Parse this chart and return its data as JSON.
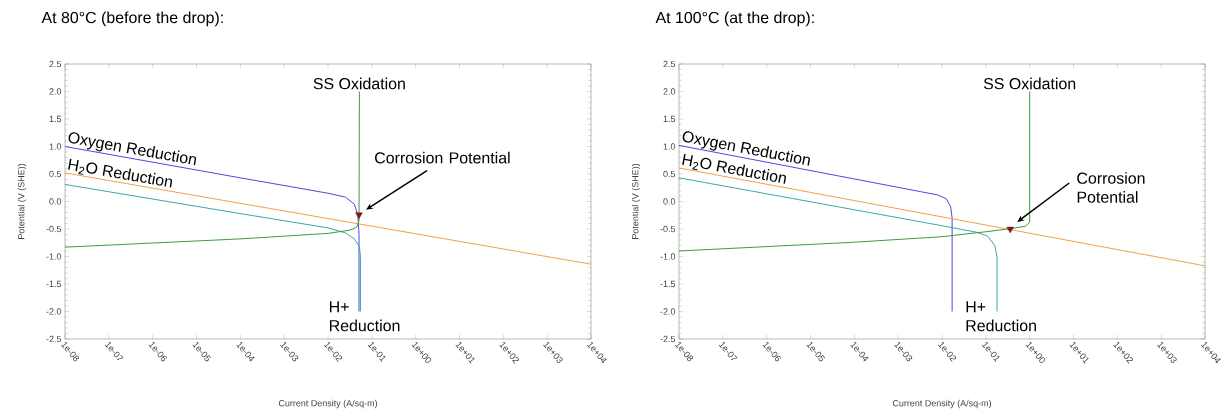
{
  "chart_data": [
    {
      "type": "line",
      "title": "At 80°C (before the drop):",
      "xlabel": "Current Density (A/sq-m)",
      "ylabel": "Potential (V (SHE))",
      "log": "x",
      "xlim": [
        1e-08,
        10000.0
      ],
      "ylim": [
        -2.5,
        2.5
      ],
      "xticks": [
        {
          "value": 1e-08,
          "label": "1e-08"
        },
        {
          "value": 1e-07,
          "label": "1e-07"
        },
        {
          "value": 1e-06,
          "label": "1e-06"
        },
        {
          "value": 1e-05,
          "label": "1e-05"
        },
        {
          "value": 0.0001,
          "label": "1e-04"
        },
        {
          "value": 0.001,
          "label": "1e-03"
        },
        {
          "value": 0.01,
          "label": "1e-02"
        },
        {
          "value": 0.1,
          "label": "1e-01"
        },
        {
          "value": 1,
          "label": "1e+00"
        },
        {
          "value": 10,
          "label": "1e+01"
        },
        {
          "value": 100,
          "label": "1e+02"
        },
        {
          "value": 1000,
          "label": "1e+03"
        },
        {
          "value": 10000,
          "label": "1e+04"
        }
      ],
      "yticks": [
        {
          "value": 2.5,
          "label": "2.5"
        },
        {
          "value": 2,
          "label": "2.0"
        },
        {
          "value": 1.5,
          "label": "1.5"
        },
        {
          "value": 1,
          "label": "1.0"
        },
        {
          "value": 0.5,
          "label": "0.5"
        },
        {
          "value": 0,
          "label": "0.0"
        },
        {
          "value": -0.5,
          "label": "-0.5"
        },
        {
          "value": -1,
          "label": "-1.0"
        },
        {
          "value": -1.5,
          "label": "-1.5"
        },
        {
          "value": -2,
          "label": "-2.0"
        },
        {
          "value": -2.5,
          "label": "-2.5"
        }
      ],
      "series": [
        {
          "name": "Oxygen Reduction",
          "color": "#4a4ae0",
          "x": [
            1e-08,
            0.0001,
            0.0032,
            0.01,
            0.025,
            0.04,
            0.048,
            0.051,
            0.051
          ],
          "values": [
            1.0,
            0.43,
            0.22,
            0.15,
            0.08,
            -0.05,
            -0.25,
            -0.6,
            -2.0
          ]
        },
        {
          "name": "H$_{2}$O Reduction",
          "color": "#f4a048",
          "x": [
            1e-08,
            10000.0
          ],
          "values": [
            0.52,
            -1.14
          ]
        },
        {
          "name": "H+ Reduction",
          "color": "#3aa8a8",
          "x": [
            1e-08,
            0.0001,
            0.01,
            0.025,
            0.04,
            0.052,
            0.055,
            0.055
          ],
          "values": [
            0.31,
            -0.22,
            -0.48,
            -0.57,
            -0.68,
            -0.82,
            -1.0,
            -2.0
          ]
        },
        {
          "name": "SS Oxidation",
          "color": "#3c9c3c",
          "x": [
            1e-08,
            0.0001,
            0.01,
            0.032,
            0.045,
            0.051,
            0.052
          ],
          "values": [
            -0.83,
            -0.68,
            -0.58,
            -0.52,
            -0.47,
            -0.35,
            2.0
          ]
        },
        {
          "type": "scatter",
          "marker": "triangle",
          "color": "#7a1a1a",
          "x": [
            0.051
          ],
          "values": [
            -0.24
          ]
        }
      ],
      "annotations": [
        "Corrosion Potential"
      ]
    },
    {
      "type": "line",
      "title": "At 100°C (at the drop):",
      "xlabel": "Current Density (A/sq-m)",
      "ylabel": "Potential (V (SHE))",
      "log": "x",
      "xlim": [
        1e-08,
        10000.0
      ],
      "ylim": [
        -2.5,
        2.5
      ],
      "xticks": [
        {
          "value": 1e-08,
          "label": "1e-08"
        },
        {
          "value": 1e-07,
          "label": "1e-07"
        },
        {
          "value": 1e-06,
          "label": "1e-06"
        },
        {
          "value": 1e-05,
          "label": "1e-05"
        },
        {
          "value": 0.0001,
          "label": "1e-04"
        },
        {
          "value": 0.001,
          "label": "1e-03"
        },
        {
          "value": 0.01,
          "label": "1e-02"
        },
        {
          "value": 0.1,
          "label": "1e-01"
        },
        {
          "value": 1,
          "label": "1e+00"
        },
        {
          "value": 10,
          "label": "1e+01"
        },
        {
          "value": 100,
          "label": "1e+02"
        },
        {
          "value": 1000,
          "label": "1e+03"
        },
        {
          "value": 10000,
          "label": "1e+04"
        }
      ],
      "yticks": [
        {
          "value": 2.5,
          "label": "2.5"
        },
        {
          "value": 2,
          "label": "2.0"
        },
        {
          "value": 1.5,
          "label": "1.5"
        },
        {
          "value": 1,
          "label": "1.0"
        },
        {
          "value": 0.5,
          "label": "0.5"
        },
        {
          "value": 0,
          "label": "0.0"
        },
        {
          "value": -0.5,
          "label": "-0.5"
        },
        {
          "value": -1,
          "label": "-1.0"
        },
        {
          "value": -1.5,
          "label": "-1.5"
        },
        {
          "value": -2,
          "label": "-2.0"
        },
        {
          "value": -2.5,
          "label": "-2.5"
        }
      ],
      "series": [
        {
          "name": "Oxygen Reduction",
          "color": "#4a4ae0",
          "x": [
            1e-08,
            0.0001,
            0.0032,
            0.0079,
            0.0126,
            0.0158,
            0.017,
            0.017
          ],
          "values": [
            1.02,
            0.41,
            0.18,
            0.12,
            0.05,
            -0.1,
            -0.3,
            -2.0
          ]
        },
        {
          "name": "H$_{2}$O Reduction",
          "color": "#f4a048",
          "x": [
            1e-08,
            10000.0
          ],
          "values": [
            0.61,
            -1.17
          ]
        },
        {
          "name": "H+ Reduction",
          "color": "#3aa8a8",
          "x": [
            1e-08,
            0.0001,
            0.01,
            0.063,
            0.11,
            0.16,
            0.18,
            0.18
          ],
          "values": [
            0.43,
            -0.15,
            -0.44,
            -0.56,
            -0.63,
            -0.8,
            -1.0,
            -2.0
          ]
        },
        {
          "name": "SS Oxidation",
          "color": "#3c9c3c",
          "x": [
            1e-08,
            0.0001,
            0.01,
            0.1,
            0.4,
            0.8,
            1.0,
            1.0
          ],
          "values": [
            -0.9,
            -0.74,
            -0.64,
            -0.55,
            -0.49,
            -0.45,
            -0.38,
            2.0
          ]
        },
        {
          "type": "scatter",
          "marker": "triangle",
          "color": "#7a1a1a",
          "x": [
            0.36
          ],
          "values": [
            -0.5
          ]
        }
      ],
      "annotations": [
        "Corrosion Potential"
      ]
    }
  ]
}
